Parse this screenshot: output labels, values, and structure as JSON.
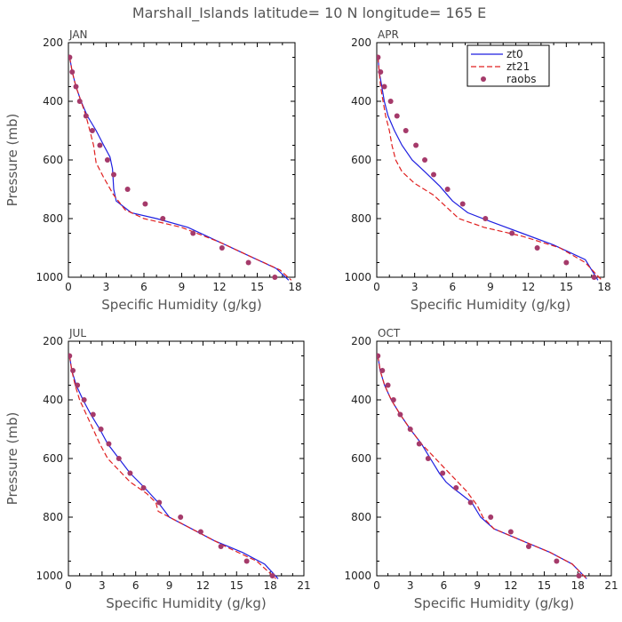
{
  "page_title": "Marshall_Islands  latitude= 10 N longitude= 165 E",
  "legend": [
    {
      "name": "zt0",
      "color": "#1f1fe0",
      "style": "solid"
    },
    {
      "name": "zt21",
      "color": "#e02020",
      "style": "dashed"
    },
    {
      "name": "raobs",
      "color": "#a53a6a",
      "style": "dots"
    }
  ],
  "chart_data": [
    {
      "type": "line",
      "title": "JAN",
      "xlabel": "Specific Humidity (g/kg)",
      "ylabel": "Pressure (mb)",
      "xlim": [
        0,
        18
      ],
      "ylim": [
        200,
        1000
      ],
      "y_inverted": true,
      "xticks": [
        0,
        3,
        6,
        9,
        12,
        15,
        18
      ],
      "yticks": [
        200,
        400,
        600,
        800,
        1000
      ],
      "show_ylabel": true,
      "show_legend": false,
      "series": [
        {
          "name": "zt0",
          "points": [
            [
              0.1,
              250
            ],
            [
              0.3,
              300
            ],
            [
              0.6,
              350
            ],
            [
              1.0,
              400
            ],
            [
              1.5,
              450
            ],
            [
              2.2,
              500
            ],
            [
              2.8,
              550
            ],
            [
              3.3,
              590
            ],
            [
              3.5,
              630
            ],
            [
              3.6,
              700
            ],
            [
              3.8,
              740
            ],
            [
              5.0,
              780
            ],
            [
              7.0,
              800
            ],
            [
              9.5,
              830
            ],
            [
              12.0,
              880
            ],
            [
              14.5,
              930
            ],
            [
              16.5,
              970
            ],
            [
              17.5,
              1010
            ]
          ]
        },
        {
          "name": "zt21",
          "points": [
            [
              0.1,
              250
            ],
            [
              0.3,
              300
            ],
            [
              0.6,
              350
            ],
            [
              1.0,
              400
            ],
            [
              1.4,
              450
            ],
            [
              1.7,
              500
            ],
            [
              2.0,
              550
            ],
            [
              2.2,
              610
            ],
            [
              2.8,
              660
            ],
            [
              3.6,
              720
            ],
            [
              4.5,
              770
            ],
            [
              6.0,
              800
            ],
            [
              9.0,
              830
            ],
            [
              12.0,
              880
            ],
            [
              14.5,
              930
            ],
            [
              16.8,
              975
            ],
            [
              17.7,
              1010
            ]
          ]
        },
        {
          "name": "raobs",
          "points": [
            [
              0.1,
              250
            ],
            [
              0.3,
              300
            ],
            [
              0.6,
              350
            ],
            [
              0.9,
              400
            ],
            [
              1.4,
              450
            ],
            [
              1.9,
              500
            ],
            [
              2.5,
              550
            ],
            [
              3.1,
              600
            ],
            [
              3.6,
              650
            ],
            [
              4.7,
              700
            ],
            [
              6.1,
              750
            ],
            [
              7.5,
              800
            ],
            [
              9.9,
              850
            ],
            [
              12.2,
              900
            ],
            [
              14.3,
              950
            ],
            [
              16.4,
              1000
            ]
          ]
        }
      ]
    },
    {
      "type": "line",
      "title": "APR",
      "xlabel": "Specific Humidity (g/kg)",
      "ylabel": "Pressure (mb)",
      "xlim": [
        0,
        18
      ],
      "ylim": [
        200,
        1000
      ],
      "y_inverted": true,
      "xticks": [
        0,
        3,
        6,
        9,
        12,
        15,
        18
      ],
      "yticks": [
        200,
        400,
        600,
        800,
        1000
      ],
      "show_ylabel": false,
      "show_legend": true,
      "series": [
        {
          "name": "zt0",
          "points": [
            [
              0.1,
              250
            ],
            [
              0.2,
              300
            ],
            [
              0.4,
              350
            ],
            [
              0.6,
              400
            ],
            [
              0.9,
              450
            ],
            [
              1.4,
              500
            ],
            [
              2.0,
              550
            ],
            [
              2.8,
              600
            ],
            [
              3.8,
              640
            ],
            [
              5.0,
              690
            ],
            [
              6.0,
              740
            ],
            [
              7.2,
              780
            ],
            [
              9.0,
              810
            ],
            [
              11.5,
              850
            ],
            [
              14.0,
              890
            ],
            [
              16.5,
              940
            ],
            [
              17.5,
              1010
            ]
          ]
        },
        {
          "name": "zt21",
          "points": [
            [
              0.1,
              250
            ],
            [
              0.2,
              300
            ],
            [
              0.3,
              350
            ],
            [
              0.5,
              400
            ],
            [
              0.7,
              450
            ],
            [
              1.0,
              500
            ],
            [
              1.2,
              550
            ],
            [
              1.5,
              600
            ],
            [
              2.0,
              640
            ],
            [
              3.0,
              680
            ],
            [
              4.5,
              720
            ],
            [
              5.5,
              760
            ],
            [
              6.5,
              800
            ],
            [
              8.5,
              830
            ],
            [
              11.5,
              860
            ],
            [
              14.5,
              900
            ],
            [
              16.5,
              950
            ],
            [
              17.8,
              1010
            ]
          ]
        },
        {
          "name": "raobs",
          "points": [
            [
              0.1,
              250
            ],
            [
              0.3,
              300
            ],
            [
              0.6,
              350
            ],
            [
              1.1,
              400
            ],
            [
              1.6,
              450
            ],
            [
              2.3,
              500
            ],
            [
              3.1,
              550
            ],
            [
              3.8,
              600
            ],
            [
              4.5,
              650
            ],
            [
              5.6,
              700
            ],
            [
              6.8,
              750
            ],
            [
              8.6,
              800
            ],
            [
              10.7,
              850
            ],
            [
              12.7,
              900
            ],
            [
              15.0,
              950
            ],
            [
              17.2,
              1000
            ]
          ]
        }
      ]
    },
    {
      "type": "line",
      "title": "JUL",
      "xlabel": "Specific Humidity (g/kg)",
      "ylabel": "Pressure (mb)",
      "xlim": [
        0,
        21
      ],
      "ylim": [
        200,
        1000
      ],
      "y_inverted": true,
      "xticks": [
        0,
        3,
        6,
        9,
        12,
        15,
        18,
        21
      ],
      "yticks": [
        200,
        400,
        600,
        800,
        1000
      ],
      "show_ylabel": true,
      "show_legend": false,
      "series": [
        {
          "name": "zt0",
          "points": [
            [
              0.1,
              250
            ],
            [
              0.3,
              300
            ],
            [
              0.7,
              350
            ],
            [
              1.3,
              400
            ],
            [
              2.0,
              450
            ],
            [
              2.8,
              500
            ],
            [
              3.5,
              550
            ],
            [
              4.5,
              600
            ],
            [
              5.5,
              650
            ],
            [
              6.8,
              700
            ],
            [
              8.0,
              750
            ],
            [
              9.0,
              800
            ],
            [
              11.0,
              840
            ],
            [
              13.0,
              880
            ],
            [
              15.5,
              920
            ],
            [
              17.5,
              960
            ],
            [
              18.7,
              1010
            ]
          ]
        },
        {
          "name": "zt21",
          "points": [
            [
              0.1,
              250
            ],
            [
              0.3,
              300
            ],
            [
              0.6,
              350
            ],
            [
              1.0,
              400
            ],
            [
              1.6,
              450
            ],
            [
              2.2,
              500
            ],
            [
              2.8,
              550
            ],
            [
              3.5,
              600
            ],
            [
              4.5,
              640
            ],
            [
              5.5,
              680
            ],
            [
              7.0,
              720
            ],
            [
              7.8,
              750
            ],
            [
              8.0,
              780
            ],
            [
              9.0,
              800
            ],
            [
              11.5,
              850
            ],
            [
              14.0,
              900
            ],
            [
              16.8,
              950
            ],
            [
              18.5,
              1010
            ]
          ]
        },
        {
          "name": "raobs",
          "points": [
            [
              0.1,
              250
            ],
            [
              0.4,
              300
            ],
            [
              0.8,
              350
            ],
            [
              1.4,
              400
            ],
            [
              2.2,
              450
            ],
            [
              2.9,
              500
            ],
            [
              3.6,
              550
            ],
            [
              4.5,
              600
            ],
            [
              5.5,
              650
            ],
            [
              6.7,
              700
            ],
            [
              8.1,
              750
            ],
            [
              10.0,
              800
            ],
            [
              11.8,
              850
            ],
            [
              13.6,
              900
            ],
            [
              15.9,
              950
            ],
            [
              18.2,
              1000
            ]
          ]
        }
      ]
    },
    {
      "type": "line",
      "title": "OCT",
      "xlabel": "Specific Humidity (g/kg)",
      "ylabel": "Pressure (mb)",
      "xlim": [
        0,
        21
      ],
      "ylim": [
        200,
        1000
      ],
      "y_inverted": true,
      "xticks": [
        0,
        3,
        6,
        9,
        12,
        15,
        18,
        21
      ],
      "yticks": [
        200,
        400,
        600,
        800,
        1000
      ],
      "show_ylabel": false,
      "show_legend": false,
      "series": [
        {
          "name": "zt0",
          "points": [
            [
              0.1,
              250
            ],
            [
              0.3,
              300
            ],
            [
              0.7,
              350
            ],
            [
              1.3,
              400
            ],
            [
              2.1,
              450
            ],
            [
              3.0,
              500
            ],
            [
              4.0,
              550
            ],
            [
              4.8,
              600
            ],
            [
              5.6,
              650
            ],
            [
              6.2,
              680
            ],
            [
              6.8,
              700
            ],
            [
              7.5,
              720
            ],
            [
              8.5,
              750
            ],
            [
              9.3,
              800
            ],
            [
              10.5,
              840
            ],
            [
              13.0,
              880
            ],
            [
              15.5,
              920
            ],
            [
              17.5,
              960
            ],
            [
              18.8,
              1010
            ]
          ]
        },
        {
          "name": "zt21",
          "points": [
            [
              0.1,
              250
            ],
            [
              0.3,
              300
            ],
            [
              0.7,
              350
            ],
            [
              1.3,
              400
            ],
            [
              2.1,
              450
            ],
            [
              3.0,
              500
            ],
            [
              4.0,
              550
            ],
            [
              5.0,
              590
            ],
            [
              6.0,
              630
            ],
            [
              7.0,
              670
            ],
            [
              8.0,
              710
            ],
            [
              9.0,
              760
            ],
            [
              9.5,
              800
            ],
            [
              10.5,
              840
            ],
            [
              13.0,
              880
            ],
            [
              15.5,
              920
            ],
            [
              17.5,
              960
            ],
            [
              18.8,
              1010
            ]
          ]
        },
        {
          "name": "raobs",
          "points": [
            [
              0.1,
              250
            ],
            [
              0.5,
              300
            ],
            [
              1.0,
              350
            ],
            [
              1.5,
              400
            ],
            [
              2.1,
              450
            ],
            [
              3.0,
              500
            ],
            [
              3.8,
              550
            ],
            [
              4.6,
              600
            ],
            [
              5.9,
              650
            ],
            [
              7.1,
              700
            ],
            [
              8.4,
              750
            ],
            [
              10.2,
              800
            ],
            [
              12.0,
              850
            ],
            [
              13.6,
              900
            ],
            [
              16.1,
              950
            ],
            [
              18.1,
              1000
            ]
          ]
        }
      ]
    }
  ]
}
